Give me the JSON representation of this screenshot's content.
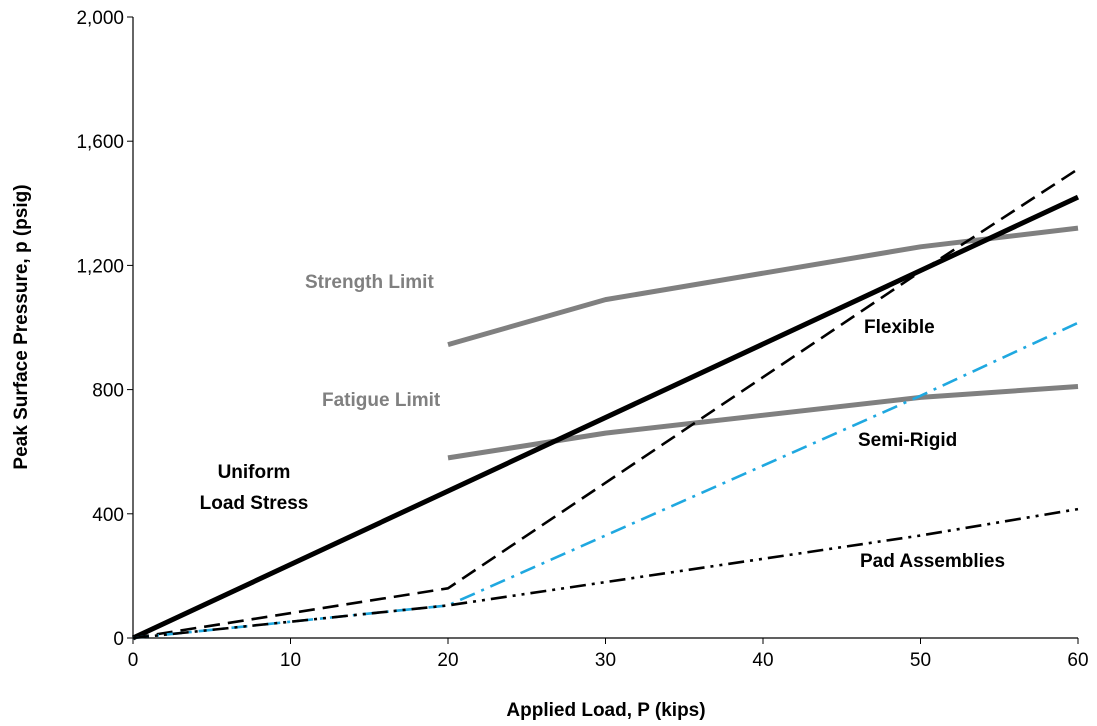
{
  "chart_data": {
    "type": "line",
    "xlabel": "Applied Load, P (kips)",
    "ylabel": "Peak Surface Pressure, p (psig)",
    "xlim": [
      0,
      60
    ],
    "ylim": [
      0,
      2000
    ],
    "xticks": [
      0,
      10,
      20,
      30,
      40,
      50,
      60
    ],
    "yticks": [
      0,
      400,
      800,
      1200,
      1600,
      2000
    ],
    "xtick_labels": [
      "0",
      "10",
      "20",
      "30",
      "40",
      "50",
      "60"
    ],
    "ytick_labels": [
      "0",
      "400",
      "800",
      "1,200",
      "1,600",
      "2,000"
    ],
    "grid": false,
    "legend": "none",
    "series": [
      {
        "key": "strength",
        "x": [
          20,
          30,
          50,
          60
        ],
        "y": [
          945,
          1090,
          1260,
          1320
        ],
        "color": "#808080",
        "style": "solid-thick"
      },
      {
        "key": "fatigue",
        "x": [
          20,
          30,
          50,
          60
        ],
        "y": [
          580,
          660,
          775,
          810
        ],
        "color": "#808080",
        "style": "solid-thick"
      },
      {
        "key": "uniform",
        "x": [
          0,
          60
        ],
        "y": [
          0,
          1420
        ],
        "color": "#000000",
        "style": "solid-thick"
      },
      {
        "key": "flexible",
        "x": [
          0,
          20,
          30,
          50,
          60
        ],
        "y": [
          0,
          160,
          500,
          1180,
          1510
        ],
        "color": "#000000",
        "style": "dash"
      },
      {
        "key": "semirigid",
        "x": [
          0,
          20,
          30,
          50,
          60
        ],
        "y": [
          0,
          105,
          330,
          780,
          1015
        ],
        "color": "#1fa8e0",
        "style": "dash-dot"
      },
      {
        "key": "pad",
        "x": [
          0,
          20,
          30,
          50,
          60
        ],
        "y": [
          0,
          105,
          180,
          330,
          415
        ],
        "color": "#000000",
        "style": "dash-dot-dot"
      }
    ],
    "annotations": [
      {
        "key": "strength",
        "text": "Strength Limit",
        "color": "#808080"
      },
      {
        "key": "fatigue",
        "text": "Fatigue Limit",
        "color": "#808080"
      },
      {
        "key": "uniform1",
        "text": "Uniform",
        "color": "#000000"
      },
      {
        "key": "uniform2",
        "text": "Load Stress",
        "color": "#000000"
      },
      {
        "key": "flexible",
        "text": "Flexible",
        "color": "#000000"
      },
      {
        "key": "semirigid",
        "text": "Semi-Rigid",
        "color": "#000000"
      },
      {
        "key": "pad",
        "text": "Pad Assemblies",
        "color": "#000000"
      }
    ]
  }
}
